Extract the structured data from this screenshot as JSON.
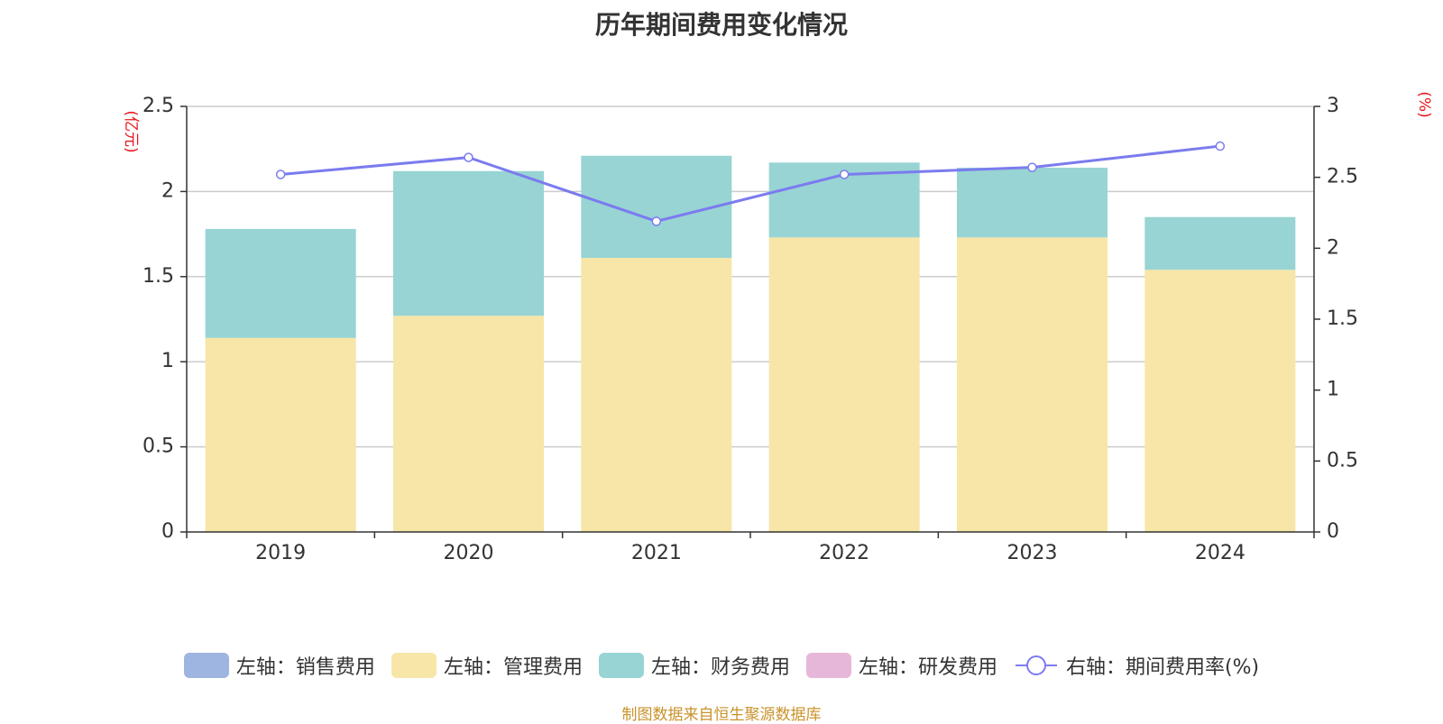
{
  "title": "历年期间费用变化情况",
  "source": "制图数据来自恒生聚源数据库",
  "chart_data": {
    "type": "bar",
    "stacked": true,
    "categories": [
      "2019",
      "2020",
      "2021",
      "2022",
      "2023",
      "2024"
    ],
    "left_axis": {
      "unit": "(亿元)",
      "ylim": [
        0,
        2.5
      ],
      "ticks": [
        "0",
        "0.5",
        "1",
        "1.5",
        "2",
        "2.5"
      ],
      "tick_values": [
        0,
        0.5,
        1,
        1.5,
        2,
        2.5
      ]
    },
    "right_axis": {
      "unit": "(%)",
      "ylim": [
        0,
        3
      ],
      "ticks": [
        "0",
        "0.5",
        "1",
        "1.5",
        "2",
        "2.5",
        "3"
      ],
      "tick_values": [
        0,
        0.5,
        1,
        1.5,
        2,
        2.5,
        3
      ]
    },
    "series": [
      {
        "name": "左轴：销售费用",
        "type": "bar",
        "axis": "left",
        "color": "#9db5e0",
        "values": [
          0,
          0,
          0,
          0,
          0,
          0
        ]
      },
      {
        "name": "左轴：管理费用",
        "type": "bar",
        "axis": "left",
        "color": "#f7e6a7",
        "values": [
          1.14,
          1.27,
          1.61,
          1.73,
          1.73,
          1.54
        ]
      },
      {
        "name": "左轴：财务费用",
        "type": "bar",
        "axis": "left",
        "color": "#98d4d4",
        "values": [
          0.64,
          0.85,
          0.6,
          0.44,
          0.41,
          0.31
        ]
      },
      {
        "name": "左轴：研发费用",
        "type": "bar",
        "axis": "left",
        "color": "#e7b7d9",
        "values": [
          0,
          0,
          0,
          0,
          0,
          0
        ]
      },
      {
        "name": "右轴：期间费用率(%)",
        "type": "line",
        "axis": "right",
        "color": "#7b7bef",
        "values": [
          2.52,
          2.64,
          2.19,
          2.52,
          2.57,
          2.72
        ]
      }
    ],
    "grid": true,
    "legend_position": "bottom"
  }
}
